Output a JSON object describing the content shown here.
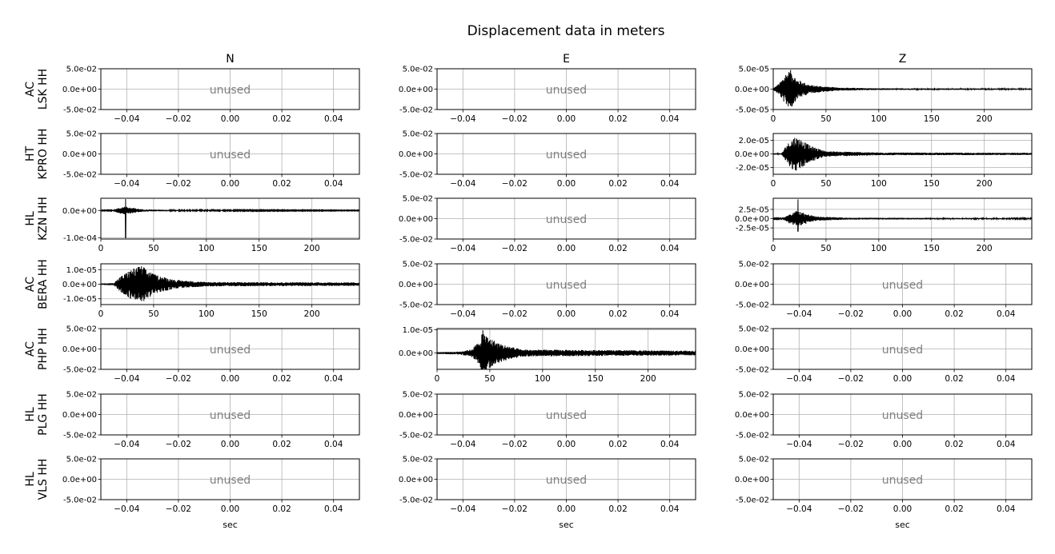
{
  "title": "Displacement data in meters",
  "columns": [
    "N",
    "E",
    "Z"
  ],
  "rows": [
    [
      "AC",
      "LSK HH"
    ],
    [
      "HT",
      "KPRO HH"
    ],
    [
      "HL",
      "KZN HH"
    ],
    [
      "AC",
      "BERA HH"
    ],
    [
      "AC",
      "PHP HH"
    ],
    [
      "HL",
      "PLG HH"
    ],
    [
      "HL",
      "VLS HH"
    ]
  ],
  "xlabel": "sec",
  "unused_label": "unused",
  "colors": {
    "trace": "#000000",
    "grid": "#b0b0b0",
    "unused_text": "#808080"
  },
  "unused_axis": {
    "xticks": [
      "−0.04",
      "−0.02",
      "0.00",
      "0.02",
      "0.04"
    ],
    "yticks": [
      "5.0e-02",
      "0.0e+00",
      "-5.0e-02"
    ]
  },
  "chart_data": {
    "type": "line",
    "title": "Displacement data in meters",
    "xlabel": "sec",
    "grid": true,
    "x_range": [
      0,
      245
    ],
    "x_ticks": [
      "0",
      "50",
      "100",
      "150",
      "200"
    ],
    "panels": [
      {
        "row": 0,
        "col": 2,
        "station": "AC LSK HH",
        "component": "Z",
        "ylim": [
          -5e-05,
          5e-05
        ],
        "yticks": [
          {
            "v": 5e-05,
            "label": "5.0e-05"
          },
          {
            "v": 0,
            "label": "0.0e+00"
          },
          {
            "v": -5e-05,
            "label": "-5.0e-05"
          }
        ],
        "onset": 6,
        "peak_time": 17,
        "peak_amp": 4.8e-05,
        "decay": 9,
        "noise": 2e-06,
        "envelope": [
          [
            0,
            2e-06
          ],
          [
            6,
            1.5e-05
          ],
          [
            12,
            4e-05
          ],
          [
            17,
            4.8e-05
          ],
          [
            22,
            2.5e-05
          ],
          [
            35,
            1e-05
          ],
          [
            60,
            4e-06
          ],
          [
            100,
            2e-06
          ],
          [
            245,
            1.5e-06
          ]
        ]
      },
      {
        "row": 1,
        "col": 2,
        "station": "HT KPRO HH",
        "component": "Z",
        "ylim": [
          -3e-05,
          3e-05
        ],
        "yticks": [
          {
            "v": 2e-05,
            "label": "2.0e-05"
          },
          {
            "v": 0,
            "label": "0.0e+00"
          },
          {
            "v": -2e-05,
            "label": "-2.0e-05"
          }
        ],
        "envelope": [
          [
            0,
            1e-06
          ],
          [
            8,
            1e-06
          ],
          [
            12,
            1.2e-05
          ],
          [
            20,
            2.6e-05
          ],
          [
            25,
            2.3e-05
          ],
          [
            35,
            1.2e-05
          ],
          [
            50,
            4e-06
          ],
          [
            100,
            2e-06
          ],
          [
            245,
            1.5e-06
          ]
        ]
      },
      {
        "row": 2,
        "col": 0,
        "station": "HL KZN HH",
        "component": "N",
        "ylim": [
          -0.000105,
          4.5e-05
        ],
        "yticks": [
          {
            "v": 0,
            "label": "0.0e+00"
          },
          {
            "v": -0.0001,
            "label": "-1.0e-04"
          }
        ],
        "spike": {
          "t": 23.5,
          "min": -0.000102,
          "max": 4.2e-05
        },
        "envelope": [
          [
            0,
            1e-06
          ],
          [
            10,
            1.5e-06
          ],
          [
            14,
            6e-06
          ],
          [
            22,
            1.5e-05
          ],
          [
            30,
            1e-05
          ],
          [
            40,
            4e-06
          ],
          [
            70,
            2e-06
          ],
          [
            245,
            1e-06
          ]
        ]
      },
      {
        "row": 2,
        "col": 2,
        "station": "HL KZN HH",
        "component": "Z",
        "ylim": [
          -5.5e-05,
          5.5e-05
        ],
        "yticks": [
          {
            "v": 2.5e-05,
            "label": "2.5e-05"
          },
          {
            "v": 0,
            "label": "0.0e+00"
          },
          {
            "v": -2.5e-05,
            "label": "-2.5e-05"
          }
        ],
        "spike": {
          "t": 23.5,
          "min": -3.5e-05,
          "max": 5.2e-05
        },
        "envelope": [
          [
            0,
            1e-06
          ],
          [
            10,
            1.5e-06
          ],
          [
            13,
            1e-05
          ],
          [
            22,
            2.2e-05
          ],
          [
            30,
            1.5e-05
          ],
          [
            40,
            6e-06
          ],
          [
            70,
            2.5e-06
          ],
          [
            245,
            1.5e-06
          ]
        ]
      },
      {
        "row": 3,
        "col": 0,
        "station": "AC BERA HH",
        "component": "N",
        "ylim": [
          -1.4e-05,
          1.4e-05
        ],
        "yticks": [
          {
            "v": 1e-05,
            "label": "1.0e-05"
          },
          {
            "v": 0,
            "label": "0.0e+00"
          },
          {
            "v": -1e-05,
            "label": "-1.0e-05"
          }
        ],
        "envelope": [
          [
            0,
            5e-07
          ],
          [
            12,
            8e-07
          ],
          [
            18,
            5e-06
          ],
          [
            28,
            1e-05
          ],
          [
            38,
            1.3e-05
          ],
          [
            50,
            7e-06
          ],
          [
            70,
            3e-06
          ],
          [
            100,
            1.5e-06
          ],
          [
            245,
            1.2e-06
          ]
        ]
      },
      {
        "row": 4,
        "col": 1,
        "station": "AC PHP HH",
        "component": "E",
        "ylim": [
          -7e-06,
          1.05e-05
        ],
        "yticks": [
          {
            "v": 1e-05,
            "label": "1.0e-05"
          },
          {
            "v": 0,
            "label": "0.0e+00"
          }
        ],
        "envelope": [
          [
            0,
            4e-07
          ],
          [
            20,
            6e-07
          ],
          [
            32,
            1.5e-06
          ],
          [
            40,
            5e-06
          ],
          [
            43,
            1e-05
          ],
          [
            48,
            7e-06
          ],
          [
            60,
            4e-06
          ],
          [
            80,
            1.5e-06
          ],
          [
            245,
            1e-06
          ]
        ]
      }
    ]
  }
}
